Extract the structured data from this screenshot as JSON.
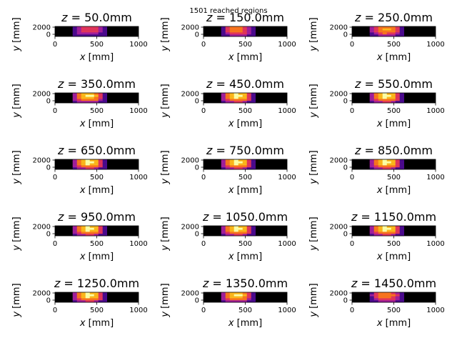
{
  "figure": {
    "suptitle": "1501 reached regions"
  },
  "chart_data": {
    "type": "heatmap",
    "x_ticks": [
      0,
      500,
      1000
    ],
    "y_ticks": [
      2000,
      0
    ],
    "xlim": [
      0,
      1000
    ],
    "ylim": [
      -600,
      2200
    ],
    "xlabel": "$x$ [mm]",
    "ylabel": "$y$ [mm]",
    "colormap": [
      "#000000",
      "#4a0a8c",
      "#a01e9a",
      "#e0355a",
      "#f7741e",
      "#fbb61a",
      "#fcffa4"
    ],
    "panels": [
      {
        "z": "50.0",
        "title": "z = 50.0mm",
        "intensity": 0.55
      },
      {
        "z": "150.0",
        "title": "z = 150.0mm",
        "intensity": 0.7
      },
      {
        "z": "250.0",
        "title": "z = 250.0mm",
        "intensity": 0.8
      },
      {
        "z": "350.0",
        "title": "z = 350.0mm",
        "intensity": 0.95
      },
      {
        "z": "450.0",
        "title": "z = 450.0mm",
        "intensity": 1.0
      },
      {
        "z": "550.0",
        "title": "z = 550.0mm",
        "intensity": 1.0
      },
      {
        "z": "650.0",
        "title": "z = 650.0mm",
        "intensity": 1.0
      },
      {
        "z": "750.0",
        "title": "z = 750.0mm",
        "intensity": 1.0
      },
      {
        "z": "850.0",
        "title": "z = 850.0mm",
        "intensity": 1.0
      },
      {
        "z": "950.0",
        "title": "z = 950.0mm",
        "intensity": 1.0
      },
      {
        "z": "1050.0",
        "title": "z = 1050.0mm",
        "intensity": 1.0
      },
      {
        "z": "1150.0",
        "title": "z = 1150.0mm",
        "intensity": 1.0
      },
      {
        "z": "1250.0",
        "title": "z = 1250.0mm",
        "intensity": 1.0
      },
      {
        "z": "1350.0",
        "title": "z = 1350.0mm",
        "intensity": 0.95
      },
      {
        "z": "1450.0",
        "title": "z = 1450.0mm",
        "intensity": 0.75
      }
    ]
  }
}
